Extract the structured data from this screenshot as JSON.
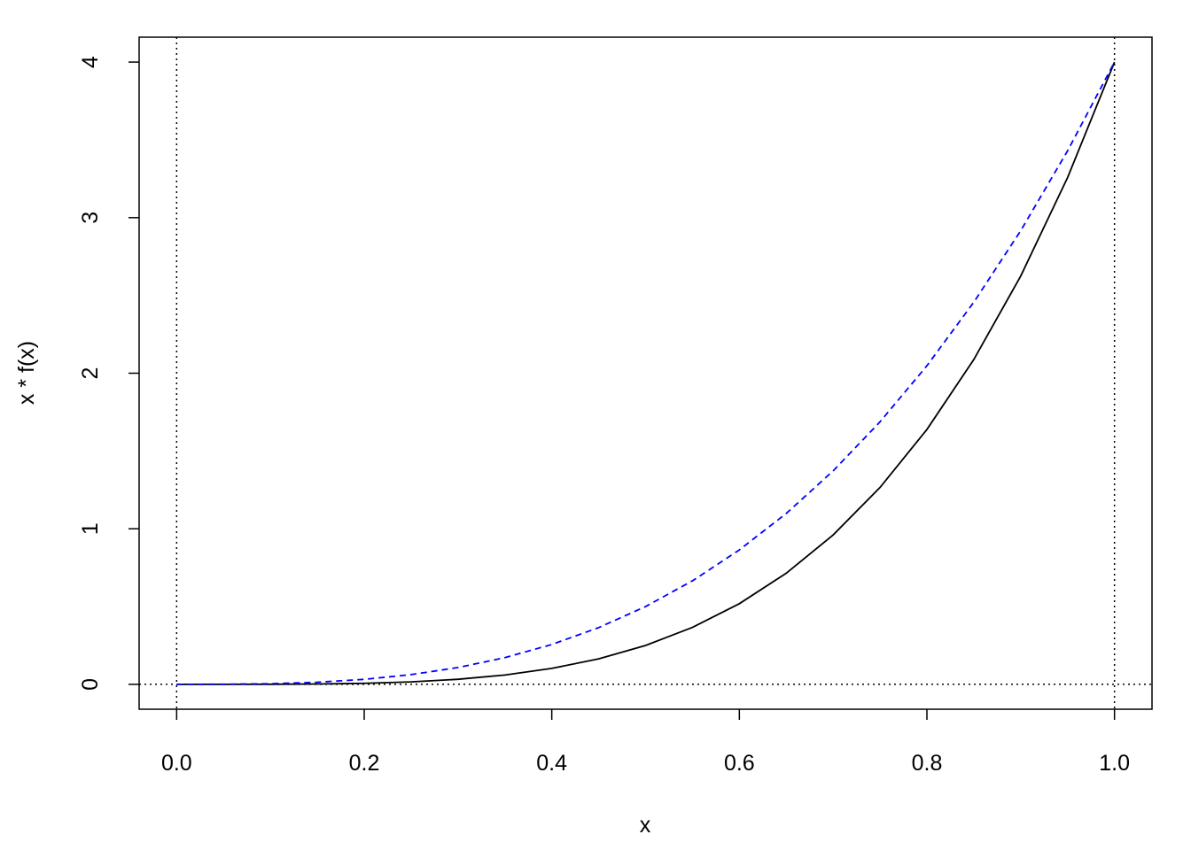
{
  "chart_data": {
    "type": "line",
    "xlabel": "x",
    "ylabel": "x * f(x)",
    "x": [
      0,
      0.05,
      0.1,
      0.15,
      0.2,
      0.25,
      0.3,
      0.35,
      0.4,
      0.45,
      0.5,
      0.55,
      0.6,
      0.65,
      0.7,
      0.75,
      0.8,
      0.85,
      0.9,
      0.95,
      1
    ],
    "series": [
      {
        "color": "#000000",
        "dash": "solid",
        "values": [
          0,
          2.5e-05,
          0.0004,
          0.002025,
          0.0064,
          0.015625,
          0.0324,
          0.060025,
          0.1024,
          0.164025,
          0.25,
          0.366025,
          0.5184,
          0.714025,
          0.9604,
          1.265625,
          1.6384,
          2.088025,
          2.6244,
          3.258025,
          4
        ]
      },
      {
        "color": "#0000ff",
        "dash": "dashed",
        "values": [
          0,
          0.0005,
          0.004,
          0.0135,
          0.032,
          0.0625,
          0.108,
          0.1715,
          0.256,
          0.3645,
          0.5,
          0.6655,
          0.864,
          1.0985,
          1.372,
          1.6875,
          2.048,
          2.4565,
          2.916,
          3.4295,
          4
        ]
      }
    ],
    "reference_lines": {
      "x": [
        0,
        1
      ],
      "y": [
        0
      ]
    },
    "xlim": [
      -0.04,
      1.04
    ],
    "ylim": [
      -0.16,
      4.16
    ],
    "xticks": [
      {
        "value": 0,
        "label": "0.0"
      },
      0.2,
      0.4,
      0.6,
      0.8,
      {
        "value": 1,
        "label": "1.0"
      }
    ],
    "yticks": [
      0,
      1,
      2,
      3,
      4
    ]
  }
}
